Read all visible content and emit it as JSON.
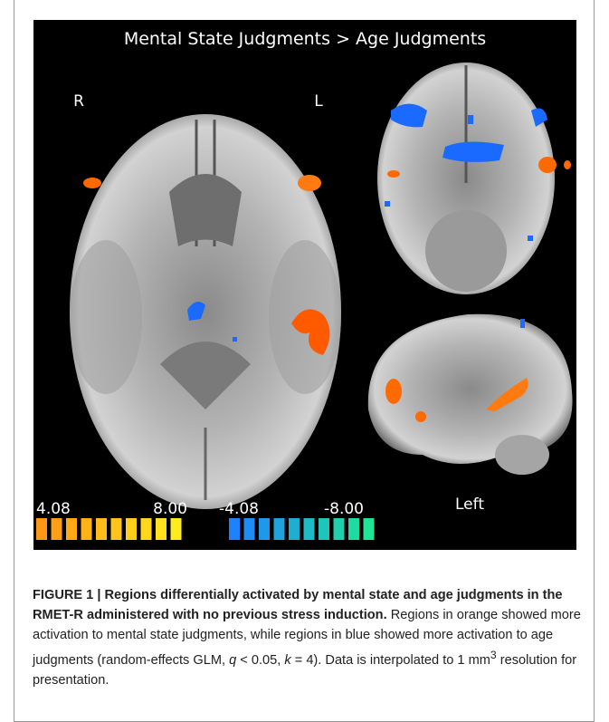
{
  "figure": {
    "title": "Mental State Judgments > Age Judgments",
    "labels": {
      "right": "R",
      "left": "L",
      "sagittal": "Left"
    },
    "scale": {
      "positive_min": "4.08",
      "positive_max": "8.00",
      "negative_min": "-4.08",
      "negative_max": "-8.00"
    }
  },
  "caption": {
    "heading": "FIGURE 1 | Regions differentially activated by mental state and age judgments in the RMET-R administered with no previous stress induction.",
    "text1": "Regions in orange showed more activation to mental state judgments, while regions in blue showed more activation to age judgments (random-effects GLM, ",
    "q": "q",
    "text2": " < 0.05, ",
    "k": "k",
    "text3": " = 4). Data is interpolated to 1 mm",
    "superscript": "3",
    "text4": " resolution for presentation."
  }
}
